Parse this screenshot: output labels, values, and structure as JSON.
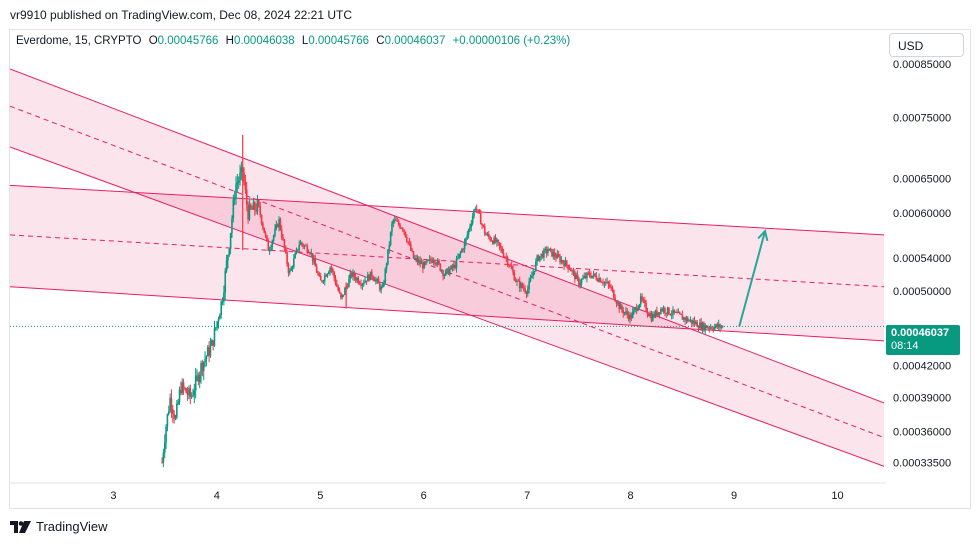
{
  "header": {
    "publisher": "vr9910 published on TradingView.com, Dec 08, 2024 22:21 UTC"
  },
  "legend": {
    "symbol": "Everdome, 15, CRYPTO",
    "o_label": "O",
    "o": "0.00045766",
    "h_label": "H",
    "h": "0.00046038",
    "l_label": "L",
    "l": "0.00045766",
    "c_label": "C",
    "c": "0.00046037",
    "change": "+0.00000106 (+0.23%)"
  },
  "currency_button": "USD",
  "price_tag": {
    "price": "0.00046037",
    "countdown": "08:14"
  },
  "footer": {
    "brand": "TradingView"
  },
  "colors": {
    "up": "#089981",
    "down": "#f23645",
    "channel": "#e91e63",
    "channel_fill": "rgba(233,30,99,0.12)",
    "arrow": "#26a69a"
  },
  "chart_data": {
    "type": "candlestick",
    "y_scale": "log",
    "ylim": [
      0.00032,
      0.00092
    ],
    "xlim": [
      2.0,
      10.45
    ],
    "y_ticks": [
      "0.00085000",
      "0.00075000",
      "0.00065000",
      "0.00060000",
      "0.00054000",
      "0.00050000",
      "0.00042000",
      "0.00039000",
      "0.00036000",
      "0.00033500"
    ],
    "x_ticks": [
      "3",
      "4",
      "5",
      "6",
      "7",
      "8",
      "9",
      "10"
    ],
    "last_price": 0.00046037,
    "price_path": [
      [
        3.47,
        0.000335
      ],
      [
        3.5,
        0.00036
      ],
      [
        3.55,
        0.00039
      ],
      [
        3.6,
        0.00037
      ],
      [
        3.65,
        0.0004
      ],
      [
        3.75,
        0.00039
      ],
      [
        3.85,
        0.00042
      ],
      [
        3.95,
        0.00044
      ],
      [
        4.05,
        0.00049
      ],
      [
        4.12,
        0.00056
      ],
      [
        4.18,
        0.00064
      ],
      [
        4.25,
        0.00066
      ],
      [
        4.3,
        0.0006
      ],
      [
        4.4,
        0.00061
      ],
      [
        4.5,
        0.00055
      ],
      [
        4.6,
        0.00059
      ],
      [
        4.7,
        0.00052
      ],
      [
        4.8,
        0.00056
      ],
      [
        4.9,
        0.00055
      ],
      [
        5.0,
        0.00051
      ],
      [
        5.1,
        0.00053
      ],
      [
        5.2,
        0.00049
      ],
      [
        5.3,
        0.00052
      ],
      [
        5.4,
        0.00051
      ],
      [
        5.5,
        0.00052
      ],
      [
        5.6,
        0.0005
      ],
      [
        5.7,
        0.00059
      ],
      [
        5.8,
        0.00058
      ],
      [
        5.9,
        0.00054
      ],
      [
        6.0,
        0.00053
      ],
      [
        6.1,
        0.00054
      ],
      [
        6.2,
        0.00052
      ],
      [
        6.3,
        0.00053
      ],
      [
        6.4,
        0.00056
      ],
      [
        6.5,
        0.00061
      ],
      [
        6.6,
        0.00057
      ],
      [
        6.7,
        0.00056
      ],
      [
        6.8,
        0.00054
      ],
      [
        6.9,
        0.00051
      ],
      [
        7.0,
        0.0005
      ],
      [
        7.1,
        0.00054
      ],
      [
        7.2,
        0.00055
      ],
      [
        7.3,
        0.00054
      ],
      [
        7.4,
        0.00053
      ],
      [
        7.5,
        0.00051
      ],
      [
        7.6,
        0.00052
      ],
      [
        7.7,
        0.000515
      ],
      [
        7.8,
        0.000505
      ],
      [
        7.9,
        0.00048
      ],
      [
        8.0,
        0.00047
      ],
      [
        8.1,
        0.00049
      ],
      [
        8.2,
        0.00047
      ],
      [
        8.3,
        0.00048
      ],
      [
        8.4,
        0.000475
      ],
      [
        8.5,
        0.00047
      ],
      [
        8.6,
        0.000465
      ],
      [
        8.7,
        0.00046
      ],
      [
        8.9,
        0.00046
      ]
    ],
    "spikes": [
      {
        "x": 4.25,
        "low": 0.00055,
        "high": 0.00072
      },
      {
        "x": 5.25,
        "low": 0.00048,
        "high": 0.00051
      }
    ],
    "regression_channels": [
      {
        "name": "descending",
        "start": {
          "x": 2.0,
          "upper": 0.00084,
          "mid": 0.00077,
          "lower": 0.0007
        },
        "end": {
          "x": 10.45,
          "upper": 0.000385,
          "mid": 0.000355,
          "lower": 0.000332
        }
      },
      {
        "name": "flat",
        "start": {
          "x": 2.0,
          "upper": 0.00064,
          "mid": 0.00057,
          "lower": 0.000505
        },
        "end": {
          "x": 10.45,
          "upper": 0.00057,
          "mid": 0.000505,
          "lower": 0.000445
        }
      }
    ],
    "projection_arrow": {
      "from": {
        "x": 9.05,
        "y": 0.00046
      },
      "to": {
        "x": 9.3,
        "y": 0.000575
      }
    }
  }
}
